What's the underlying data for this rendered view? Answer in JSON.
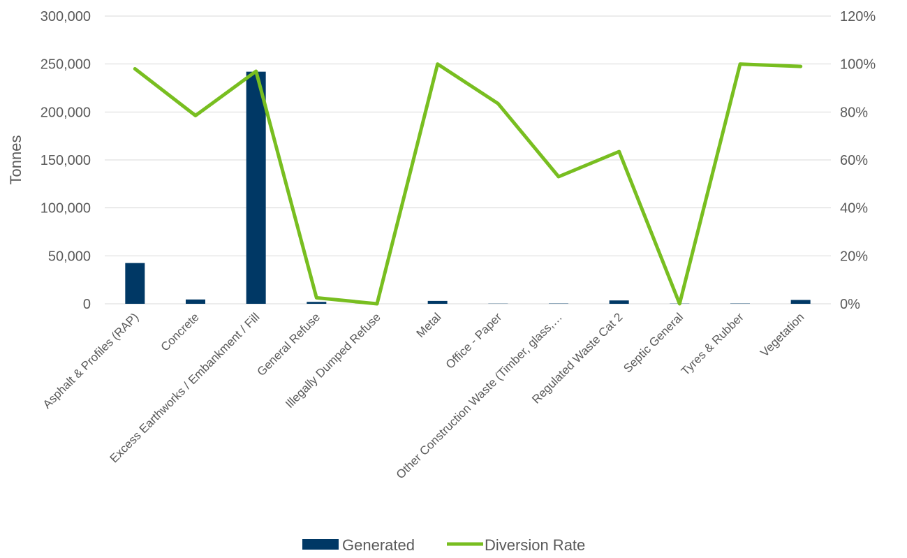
{
  "chart_data": {
    "type": "bar+line",
    "categories": [
      "Asphalt & Profiles (RAP)",
      "Concrete",
      "Excess Earthworks / Embankment / Fill",
      "General Refuse",
      "Illegally Dumped Refuse",
      "Metal",
      "Office - Paper",
      "Other Construction Waste (Timber, glass,…",
      "Regulated Waste Cat 2",
      "Septic General",
      "Tyres & Rubber",
      "Vegetation"
    ],
    "series": [
      {
        "name": "Generated",
        "type": "bar",
        "axis": "left",
        "color": "#003865",
        "values": [
          42500,
          4500,
          242000,
          2000,
          0,
          3000,
          200,
          300,
          3500,
          200,
          300,
          4000
        ]
      },
      {
        "name": "Diversion Rate",
        "type": "line",
        "axis": "right",
        "color": "#78BE20",
        "values": [
          98,
          78.5,
          97,
          2.5,
          0,
          100,
          83.5,
          53,
          63.5,
          0,
          100,
          99
        ]
      }
    ],
    "ylabel": "Tonnes",
    "y_left": {
      "min": 0,
      "max": 300000,
      "ticks": [
        "0",
        "50,000",
        "100,000",
        "150,000",
        "200,000",
        "250,000",
        "300,000"
      ]
    },
    "y_right": {
      "min": 0,
      "max": 120,
      "ticks": [
        "0%",
        "20%",
        "40%",
        "60%",
        "80%",
        "100%",
        "120%"
      ]
    },
    "grid": true,
    "legend_position": "bottom"
  }
}
